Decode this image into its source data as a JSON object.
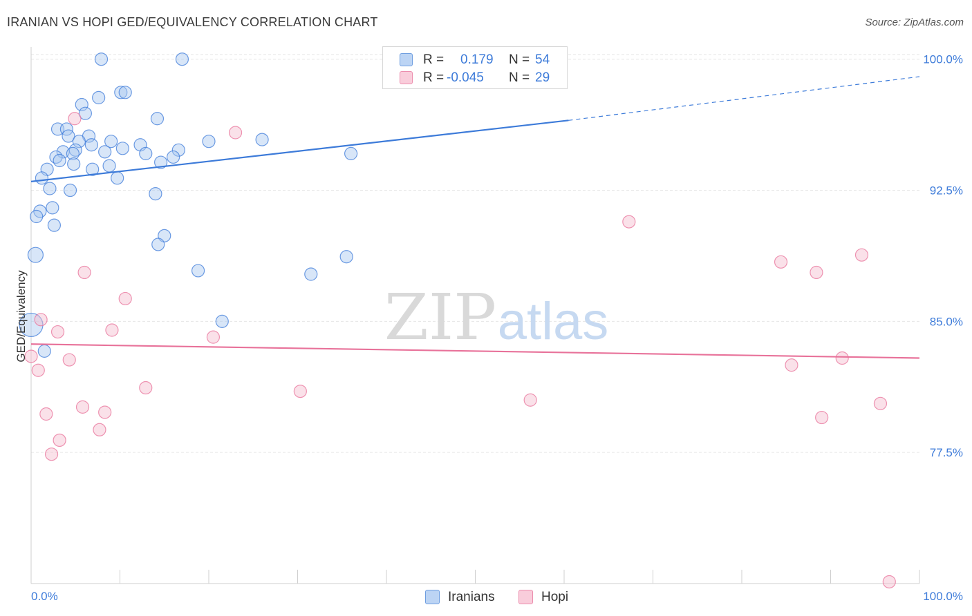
{
  "title": "IRANIAN VS HOPI GED/EQUIVALENCY CORRELATION CHART",
  "source": "Source: ZipAtlas.com",
  "watermark": {
    "zip": "ZIP",
    "atlas": "atlas"
  },
  "colors": {
    "blue": "#3d7bd9",
    "blue_fill": "#a9c8ef",
    "pink": "#e8729a",
    "pink_fill": "#f5bccf",
    "grid": "#e6e6e6",
    "tick_label": "#3d7bd9"
  },
  "legend": {
    "rows": [
      {
        "r_label": "R =",
        "r_value": "0.179",
        "n_label": "N =",
        "n_value": "54"
      },
      {
        "r_label": "R =",
        "r_value": "-0.045",
        "n_label": "N =",
        "n_value": "29"
      }
    ]
  },
  "bottom_legend": {
    "iranians": "Iranians",
    "hopi": "Hopi"
  },
  "chart_data": {
    "type": "scatter",
    "title": "IRANIAN VS HOPI GED/EQUIVALENCY CORRELATION CHART",
    "xlabel": "",
    "ylabel": "GED/Equivalency",
    "xlim": [
      0,
      100
    ],
    "ylim": [
      70.0,
      100.7
    ],
    "x_ticks": [
      "0.0%",
      "100.0%"
    ],
    "y_ticks": [
      {
        "value": 100.0,
        "label": "100.0%"
      },
      {
        "value": 92.5,
        "label": "92.5%"
      },
      {
        "value": 85.0,
        "label": "85.0%"
      },
      {
        "value": 77.5,
        "label": "77.5%"
      }
    ],
    "grid": true,
    "legend_position": "top-center",
    "series": [
      {
        "name": "Iranians",
        "color": "#3d7bd9",
        "r": 0.179,
        "n": 54,
        "trend": {
          "x": [
            0,
            60.5
          ],
          "y": [
            93.0,
            96.5
          ],
          "dashed_to": [
            100,
            99.0
          ]
        },
        "points": [
          [
            7.9,
            100.0
          ],
          [
            17.0,
            100.0
          ],
          [
            50.8,
            100.0
          ],
          [
            50.9,
            100.0
          ],
          [
            7.6,
            97.8
          ],
          [
            10.1,
            98.1
          ],
          [
            10.6,
            98.1
          ],
          [
            5.7,
            97.4
          ],
          [
            6.1,
            96.9
          ],
          [
            14.2,
            96.6
          ],
          [
            3.0,
            96.0
          ],
          [
            4.0,
            96.0
          ],
          [
            4.2,
            95.6
          ],
          [
            6.5,
            95.6
          ],
          [
            5.4,
            95.3
          ],
          [
            6.8,
            95.1
          ],
          [
            9.0,
            95.3
          ],
          [
            12.3,
            95.1
          ],
          [
            20.0,
            95.3
          ],
          [
            26.0,
            95.4
          ],
          [
            5.0,
            94.8
          ],
          [
            3.6,
            94.7
          ],
          [
            8.3,
            94.7
          ],
          [
            10.3,
            94.9
          ],
          [
            16.6,
            94.8
          ],
          [
            12.9,
            94.6
          ],
          [
            2.8,
            94.4
          ],
          [
            4.7,
            94.6
          ],
          [
            3.2,
            94.2
          ],
          [
            16.0,
            94.4
          ],
          [
            36.0,
            94.6
          ],
          [
            14.6,
            94.1
          ],
          [
            4.8,
            94.0
          ],
          [
            8.8,
            93.9
          ],
          [
            6.9,
            93.7
          ],
          [
            1.8,
            93.7
          ],
          [
            1.2,
            93.2
          ],
          [
            9.7,
            93.2
          ],
          [
            2.1,
            92.6
          ],
          [
            4.4,
            92.5
          ],
          [
            14.0,
            92.3
          ],
          [
            1.0,
            91.3
          ],
          [
            2.4,
            91.5
          ],
          [
            0.6,
            91.0
          ],
          [
            2.6,
            90.5
          ],
          [
            15.0,
            89.9
          ],
          [
            14.3,
            89.4
          ],
          [
            0.5,
            88.8
          ],
          [
            35.5,
            88.7
          ],
          [
            18.8,
            87.9
          ],
          [
            31.5,
            87.7
          ],
          [
            21.5,
            85.0
          ],
          [
            0.0,
            84.8
          ],
          [
            1.5,
            83.3
          ]
        ],
        "sizes": [
          9,
          9,
          9,
          9,
          9,
          9,
          9,
          9,
          9,
          9,
          9,
          9,
          9,
          9,
          9,
          9,
          9,
          9,
          9,
          9,
          9,
          9,
          9,
          9,
          9,
          9,
          9,
          9,
          9,
          9,
          9,
          9,
          9,
          9,
          9,
          9,
          9,
          9,
          9,
          9,
          9,
          9,
          9,
          9,
          9,
          9,
          9,
          11,
          9,
          9,
          9,
          9,
          17,
          9
        ]
      },
      {
        "name": "Hopi",
        "color": "#e8729a",
        "r": -0.045,
        "n": 29,
        "trend": {
          "x": [
            0,
            100
          ],
          "y": [
            83.7,
            82.9
          ]
        },
        "points": [
          [
            4.9,
            96.6
          ],
          [
            23.0,
            95.8
          ],
          [
            67.3,
            90.7
          ],
          [
            93.5,
            88.8
          ],
          [
            84.4,
            88.4
          ],
          [
            88.4,
            87.8
          ],
          [
            6.0,
            87.8
          ],
          [
            10.6,
            86.3
          ],
          [
            1.1,
            85.1
          ],
          [
            3.0,
            84.4
          ],
          [
            9.1,
            84.5
          ],
          [
            20.5,
            84.1
          ],
          [
            0.0,
            83.0
          ],
          [
            4.3,
            82.8
          ],
          [
            0.8,
            82.2
          ],
          [
            85.6,
            82.5
          ],
          [
            91.3,
            82.9
          ],
          [
            12.9,
            81.2
          ],
          [
            30.3,
            81.0
          ],
          [
            56.2,
            80.5
          ],
          [
            5.8,
            80.1
          ],
          [
            8.3,
            79.8
          ],
          [
            1.7,
            79.7
          ],
          [
            95.6,
            80.3
          ],
          [
            89.0,
            79.5
          ],
          [
            7.7,
            78.8
          ],
          [
            3.2,
            78.2
          ],
          [
            2.3,
            77.4
          ],
          [
            96.6,
            70.1
          ]
        ],
        "sizes": [
          9,
          9,
          9,
          9,
          9,
          9,
          9,
          9,
          9,
          9,
          9,
          9,
          9,
          9,
          9,
          9,
          9,
          9,
          9,
          9,
          9,
          9,
          9,
          9,
          9,
          9,
          9,
          9,
          9
        ]
      }
    ]
  }
}
